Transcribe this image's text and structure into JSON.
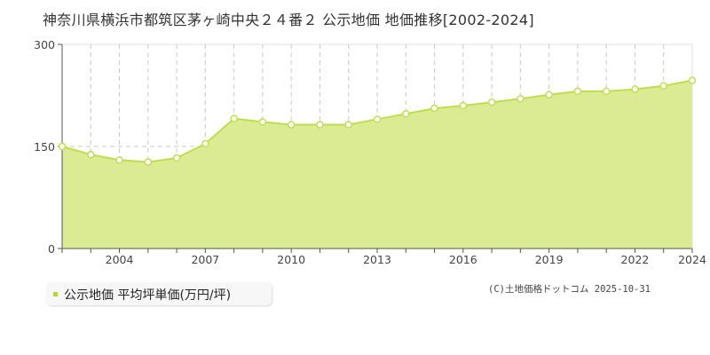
{
  "header": {
    "title": "神奈川県横浜市都筑区茅ヶ崎中央２４番２ 公示地価 地価推移[2002-2024]"
  },
  "legend": {
    "label": "公示地価 平均坪単価(万円/坪)",
    "color": "#b5d634"
  },
  "footer": {
    "copyright": "(C)土地価格ドットコム 2025-10-31"
  },
  "colors": {
    "area_fill": "#dbeb93",
    "line": "#bede4b",
    "marker_stroke": "#c2df52",
    "grid": "#c8c8c8",
    "axis": "#555555"
  },
  "chart_data": {
    "type": "area",
    "title": "神奈川県横浜市都筑区茅ヶ崎中央２４番２ 公示地価 地価推移[2002-2024]",
    "xlabel": "",
    "ylabel": "",
    "x": [
      2002,
      2003,
      2004,
      2005,
      2006,
      2007,
      2008,
      2009,
      2010,
      2011,
      2012,
      2013,
      2014,
      2015,
      2016,
      2017,
      2018,
      2019,
      2020,
      2021,
      2022,
      2023,
      2024
    ],
    "series": [
      {
        "name": "公示地価 平均坪単価(万円/坪)",
        "values": [
          150,
          138,
          130,
          127,
          133,
          154,
          191,
          186,
          182,
          182,
          182,
          190,
          198,
          206,
          210,
          215,
          220,
          226,
          231,
          231,
          234,
          239,
          247
        ]
      }
    ],
    "x_tick_labels": [
      "2004",
      "2007",
      "2010",
      "2013",
      "2016",
      "2019",
      "2022",
      "2024"
    ],
    "y_tick_labels": [
      "0",
      "150",
      "300"
    ],
    "ylim": [
      0,
      300
    ],
    "xlim": [
      2002,
      2024
    ],
    "grid": true,
    "legend_position": "bottom-left"
  }
}
